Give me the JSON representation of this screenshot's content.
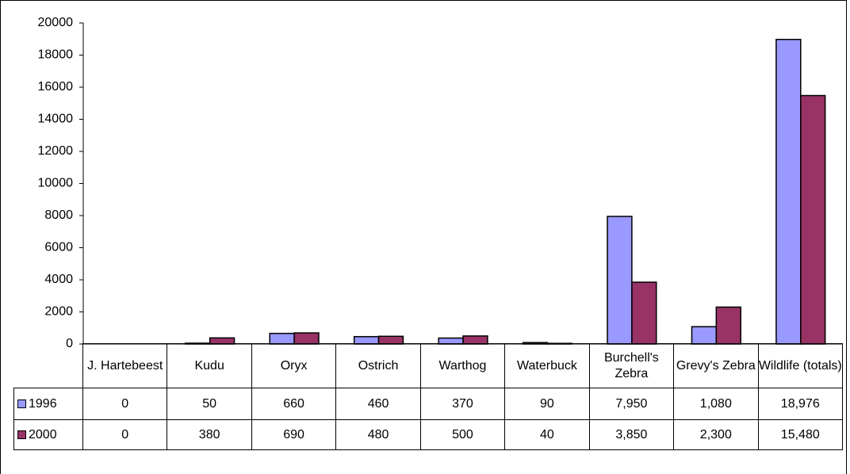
{
  "chart_data": {
    "type": "bar",
    "categories": [
      "J. Hartebeest",
      "Kudu",
      "Oryx",
      "Ostrich",
      "Warthog",
      "Waterbuck",
      "Burchell's Zebra",
      "Grevy's Zebra",
      "Wildlife (totals)"
    ],
    "series": [
      {
        "name": "1996",
        "color": "#9999ff",
        "values": [
          0,
          50,
          660,
          460,
          370,
          90,
          7950,
          1080,
          18976
        ],
        "value_labels": [
          "0",
          "50",
          "660",
          "460",
          "370",
          "90",
          "7,950",
          "1,080",
          "18,976"
        ]
      },
      {
        "name": "2000",
        "color": "#993366",
        "values": [
          0,
          380,
          690,
          480,
          500,
          40,
          3850,
          2300,
          15480
        ],
        "value_labels": [
          "0",
          "380",
          "690",
          "480",
          "500",
          "40",
          "3,850",
          "2,300",
          "15,480"
        ]
      }
    ],
    "ylim": [
      0,
      20000
    ],
    "yticks": [
      0,
      2000,
      4000,
      6000,
      8000,
      10000,
      12000,
      14000,
      16000,
      18000,
      20000
    ],
    "grid": false
  }
}
